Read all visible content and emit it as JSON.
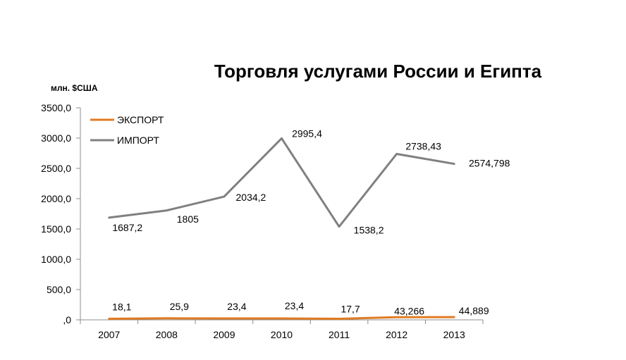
{
  "chart_data": {
    "type": "line",
    "title": "Торговля услугами России и Египта",
    "ylabel": "млн. $США",
    "xlabel": "",
    "categories": [
      "2007",
      "2008",
      "2009",
      "2010",
      "2011",
      "2012",
      "2013"
    ],
    "ylim": [
      0,
      3500
    ],
    "yticks": [
      0,
      500,
      1000,
      1500,
      2000,
      2500,
      3000,
      3500
    ],
    "ytick_labels": [
      ",0",
      "500,0",
      "1000,0",
      "1500,0",
      "2000,0",
      "2500,0",
      "3000,0",
      "3500,0"
    ],
    "grid": false,
    "legend_position": "top-left",
    "series": [
      {
        "name": "ЭКСПОРТ",
        "color": "#e07b22",
        "values": [
          18.1,
          25.9,
          23.4,
          23.4,
          17.7,
          43.266,
          44.889
        ],
        "labels": [
          "18,1",
          "25,9",
          "23,4",
          "23,4",
          "17,7",
          "43,266",
          "44,889"
        ]
      },
      {
        "name": "ИМПОРТ",
        "color": "#808080",
        "values": [
          1687.2,
          1805,
          2034.2,
          2995.4,
          1538.2,
          2738.43,
          2574.798
        ],
        "labels": [
          "1687,2",
          "1805",
          "2034,2",
          "2995,4",
          "1538,2",
          "2738,43",
          "2574,798"
        ]
      }
    ]
  }
}
